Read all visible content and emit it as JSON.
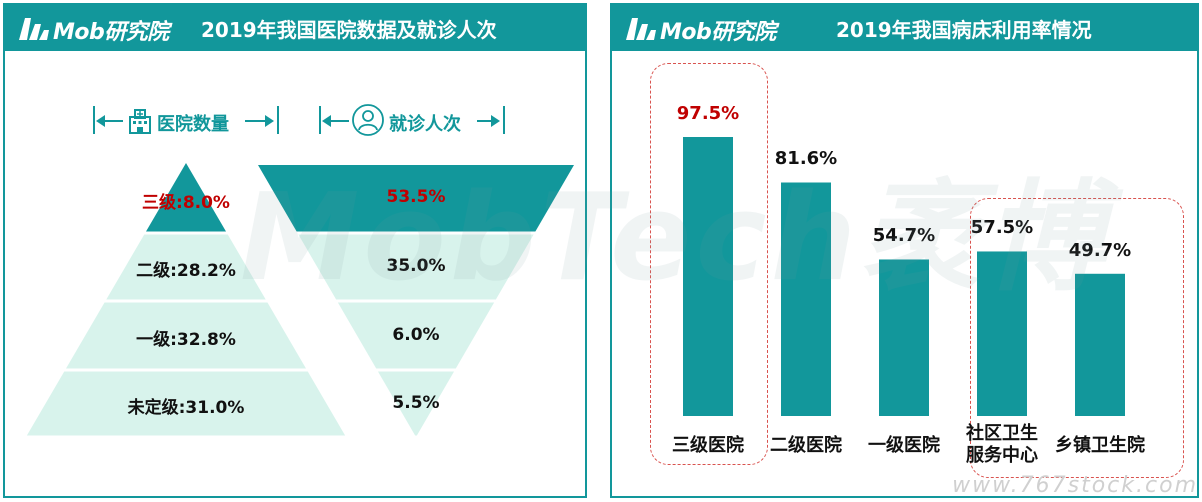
{
  "left_panel": {
    "logo_text": "Mob研究院",
    "title": "2019年我国医院数据及就诊人次",
    "legend_hospitals": "医院数量",
    "legend_visits": "就诊人次"
  },
  "right_panel": {
    "logo_text": "Mob研究院",
    "title": "2019年我国病床利用率情况"
  },
  "watermark": "MobTech袤博",
  "url_watermark": "www.767stock.com",
  "colors": {
    "teal": "#12979b",
    "light_teal": "#d8f3ec",
    "highlight_red": "#c00000"
  },
  "chart_data": [
    {
      "type": "pyramid",
      "title": "医院数量",
      "categories": [
        "三级",
        "二级",
        "一级",
        "未定级"
      ],
      "values": [
        8.0,
        28.2,
        32.8,
        31.0
      ],
      "labels": [
        "三级:8.0%",
        "二级:28.2%",
        "一级:32.8%",
        "未定级:31.0%"
      ],
      "unit": "%"
    },
    {
      "type": "funnel",
      "title": "就诊人次",
      "categories": [
        "三级",
        "二级",
        "一级",
        "未定级"
      ],
      "values": [
        53.5,
        35.0,
        6.0,
        5.5
      ],
      "labels": [
        "53.5%",
        "35.0%",
        "6.0%",
        "5.5%"
      ],
      "unit": "%"
    },
    {
      "type": "bar",
      "title": "2019年我国病床利用率情况",
      "categories": [
        "三级医院",
        "二级医院",
        "一级医院",
        "社区卫生服务中心",
        "乡镇卫生院"
      ],
      "category_lines": [
        [
          "三级医院"
        ],
        [
          "二级医院"
        ],
        [
          "一级医院"
        ],
        [
          "社区卫生",
          "服务中心"
        ],
        [
          "乡镇卫生院"
        ]
      ],
      "values": [
        97.5,
        81.6,
        54.7,
        57.5,
        49.7
      ],
      "labels": [
        "97.5%",
        "81.6%",
        "54.7%",
        "57.5%",
        "49.7%"
      ],
      "ylim": [
        0,
        100
      ],
      "highlighted_categories": [
        [
          "三级医院"
        ],
        [
          "社区卫生服务中心",
          "乡镇卫生院"
        ]
      ],
      "unit": "%"
    }
  ]
}
